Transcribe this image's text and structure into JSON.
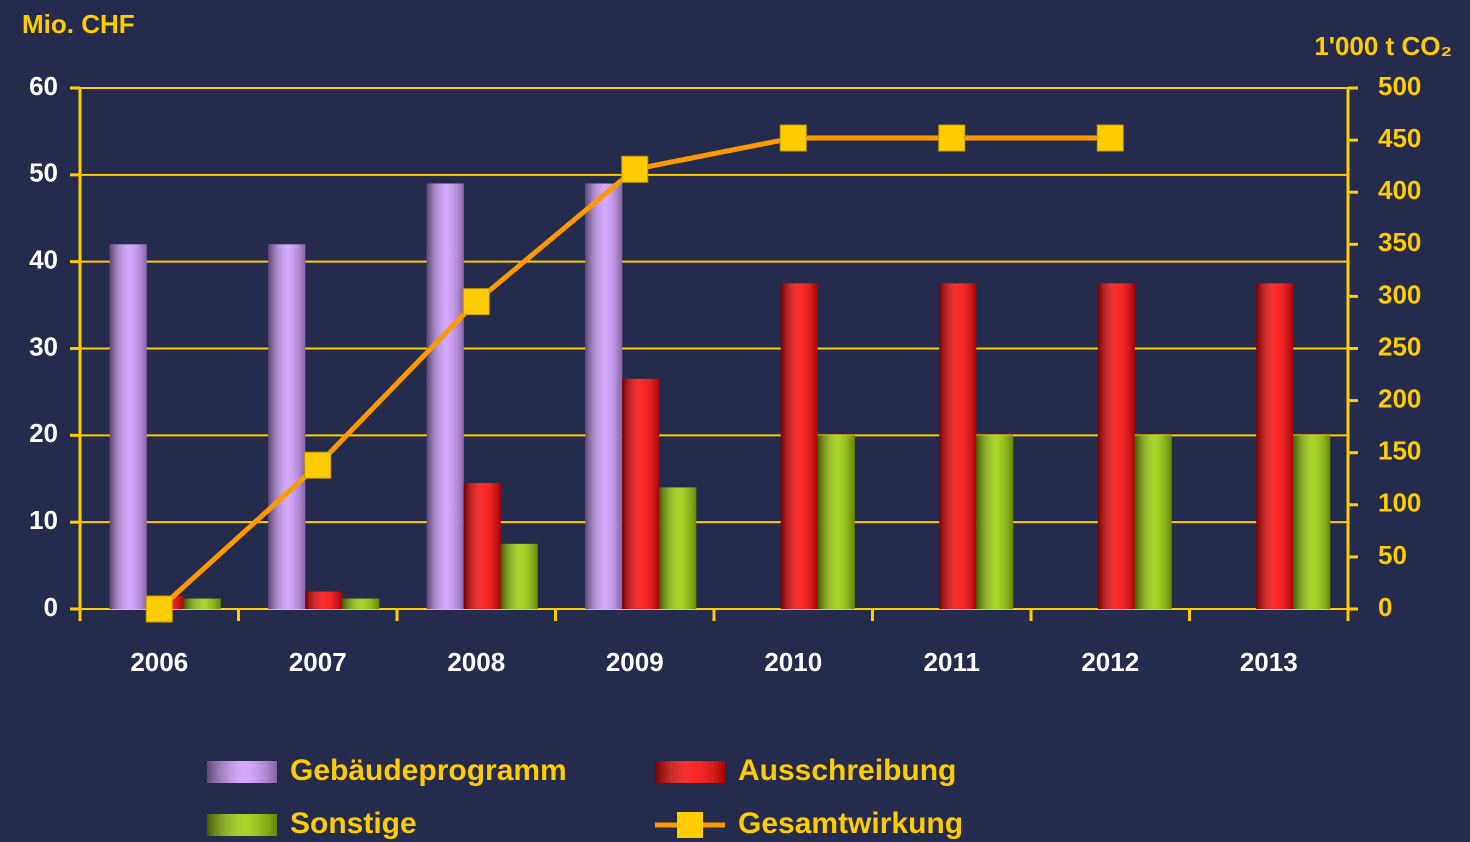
{
  "chart_data": {
    "type": "bar",
    "y_label": "Mio. CHF",
    "y2_label": "1'000 t CO₂",
    "categories": [
      "2006",
      "2007",
      "2008",
      "2009",
      "2010",
      "2011",
      "2012",
      "2013"
    ],
    "series": [
      {
        "name": "Gebäudeprogramm",
        "color": "#cc99ff",
        "values": [
          42,
          42,
          49,
          49,
          null,
          null,
          null,
          null
        ]
      },
      {
        "name": "Ausschreibung",
        "color": "#ff0000",
        "values": [
          1.5,
          2,
          14.5,
          26.5,
          37.5,
          37.5,
          37.5,
          37.5
        ]
      },
      {
        "name": "Sonstige",
        "color": "#99cc00",
        "values": [
          1.2,
          1.2,
          7.5,
          14,
          20,
          20,
          20,
          20
        ]
      },
      {
        "name": "Gesamtwirkung",
        "type": "line",
        "axis": "y2",
        "color": "#ff9900",
        "marker_color": "#ffcc00",
        "values": [
          0,
          138,
          295,
          422,
          452,
          452,
          452,
          null
        ]
      }
    ],
    "ylim": [
      0,
      60
    ],
    "yticks": [
      0,
      10,
      20,
      30,
      40,
      50,
      60
    ],
    "y2lim": [
      0,
      500
    ],
    "y2ticks": [
      0,
      50,
      100,
      150,
      200,
      250,
      300,
      350,
      400,
      450,
      500
    ],
    "grid": true,
    "grid_color": "#ffcc00",
    "legend": "bottom"
  }
}
